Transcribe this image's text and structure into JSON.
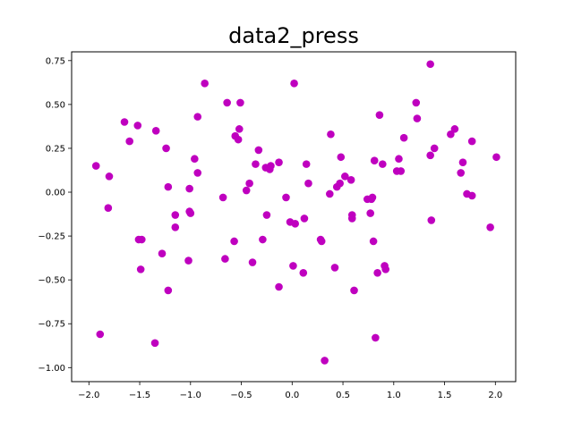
{
  "chart_data": {
    "type": "scatter",
    "title": "data2_press",
    "xlabel": "",
    "ylabel": "",
    "xlim": [
      -2.17,
      2.2
    ],
    "ylim": [
      -1.08,
      0.8
    ],
    "xticks": [
      -2.0,
      -1.5,
      -1.0,
      -0.5,
      0.0,
      0.5,
      1.0,
      1.5,
      2.0
    ],
    "xtick_labels": [
      "−2.0",
      "−1.5",
      "−1.0",
      "−0.5",
      "0.0",
      "0.5",
      "1.0",
      "1.5",
      "2.0"
    ],
    "yticks": [
      -1.0,
      -0.75,
      -0.5,
      -0.25,
      0.0,
      0.25,
      0.5,
      0.75
    ],
    "ytick_labels": [
      "−1.00",
      "−0.75",
      "−0.50",
      "−0.25",
      "0.00",
      "0.25",
      "0.50",
      "0.75"
    ],
    "grid": false,
    "color": "#bf00bf",
    "points": [
      [
        -1.93,
        0.15
      ],
      [
        -1.89,
        -0.81
      ],
      [
        -1.81,
        -0.09
      ],
      [
        -1.8,
        0.09
      ],
      [
        -1.65,
        0.4
      ],
      [
        -1.6,
        0.29
      ],
      [
        -1.52,
        0.38
      ],
      [
        -1.51,
        -0.27
      ],
      [
        -1.49,
        -0.44
      ],
      [
        -1.48,
        -0.27
      ],
      [
        -1.35,
        -0.86
      ],
      [
        -1.34,
        0.35
      ],
      [
        -1.28,
        -0.35
      ],
      [
        -1.24,
        0.25
      ],
      [
        -1.22,
        0.03
      ],
      [
        -1.22,
        -0.56
      ],
      [
        -1.15,
        -0.13
      ],
      [
        -1.15,
        -0.2
      ],
      [
        -1.02,
        -0.39
      ],
      [
        -1.01,
        0.02
      ],
      [
        -1.01,
        -0.11
      ],
      [
        -1.0,
        -0.12
      ],
      [
        -0.96,
        0.19
      ],
      [
        -0.93,
        0.43
      ],
      [
        -0.93,
        0.11
      ],
      [
        -0.86,
        0.62
      ],
      [
        -0.68,
        -0.03
      ],
      [
        -0.66,
        -0.38
      ],
      [
        -0.64,
        0.51
      ],
      [
        -0.57,
        -0.28
      ],
      [
        -0.56,
        0.32
      ],
      [
        -0.53,
        0.3
      ],
      [
        -0.52,
        0.36
      ],
      [
        -0.51,
        0.51
      ],
      [
        -0.45,
        0.01
      ],
      [
        -0.42,
        0.05
      ],
      [
        -0.39,
        -0.4
      ],
      [
        -0.36,
        0.16
      ],
      [
        -0.33,
        0.24
      ],
      [
        -0.29,
        -0.27
      ],
      [
        -0.26,
        0.14
      ],
      [
        -0.25,
        -0.13
      ],
      [
        -0.22,
        0.13
      ],
      [
        -0.21,
        0.15
      ],
      [
        -0.13,
        0.17
      ],
      [
        -0.13,
        -0.54
      ],
      [
        -0.06,
        -0.03
      ],
      [
        -0.02,
        -0.17
      ],
      [
        0.01,
        -0.42
      ],
      [
        0.02,
        0.62
      ],
      [
        0.03,
        -0.18
      ],
      [
        0.11,
        -0.46
      ],
      [
        0.12,
        -0.15
      ],
      [
        0.14,
        0.16
      ],
      [
        0.16,
        0.05
      ],
      [
        0.28,
        -0.27
      ],
      [
        0.29,
        -0.28
      ],
      [
        0.32,
        -0.96
      ],
      [
        0.37,
        -0.01
      ],
      [
        0.38,
        0.33
      ],
      [
        0.42,
        -0.43
      ],
      [
        0.44,
        0.03
      ],
      [
        0.47,
        0.05
      ],
      [
        0.48,
        0.2
      ],
      [
        0.52,
        0.09
      ],
      [
        0.58,
        0.07
      ],
      [
        0.59,
        -0.13
      ],
      [
        0.59,
        -0.15
      ],
      [
        0.61,
        -0.56
      ],
      [
        0.74,
        -0.04
      ],
      [
        0.77,
        -0.12
      ],
      [
        0.78,
        -0.04
      ],
      [
        0.79,
        -0.03
      ],
      [
        0.8,
        -0.28
      ],
      [
        0.81,
        0.18
      ],
      [
        0.82,
        -0.83
      ],
      [
        0.84,
        -0.46
      ],
      [
        0.86,
        0.44
      ],
      [
        0.89,
        0.16
      ],
      [
        0.91,
        -0.42
      ],
      [
        0.92,
        -0.44
      ],
      [
        1.03,
        0.12
      ],
      [
        1.05,
        0.19
      ],
      [
        1.07,
        0.12
      ],
      [
        1.1,
        0.31
      ],
      [
        1.22,
        0.51
      ],
      [
        1.23,
        0.42
      ],
      [
        1.36,
        0.73
      ],
      [
        1.36,
        0.21
      ],
      [
        1.37,
        -0.16
      ],
      [
        1.4,
        0.25
      ],
      [
        1.56,
        0.33
      ],
      [
        1.6,
        0.36
      ],
      [
        1.66,
        0.11
      ],
      [
        1.68,
        0.17
      ],
      [
        1.72,
        -0.01
      ],
      [
        1.77,
        0.29
      ],
      [
        1.77,
        -0.02
      ],
      [
        1.95,
        -0.2
      ],
      [
        2.01,
        0.2
      ]
    ]
  }
}
